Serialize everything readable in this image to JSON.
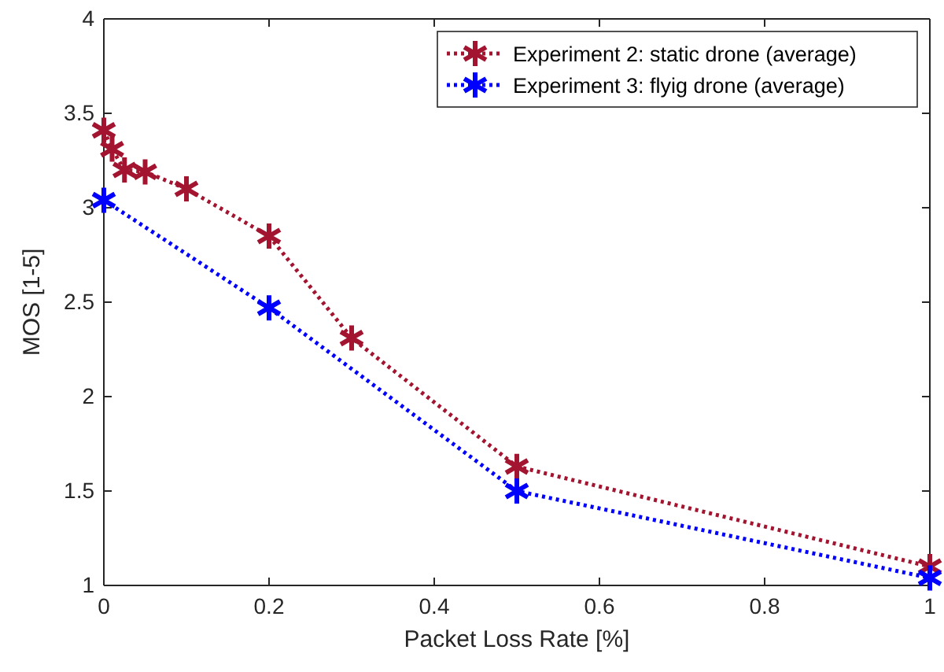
{
  "chart_data": {
    "type": "line",
    "xlabel": "Packet Loss Rate [%]",
    "ylabel": "MOS [1-5]",
    "xlim": [
      0,
      1
    ],
    "xticks": [
      0,
      0.2,
      0.4,
      0.6,
      0.8,
      1
    ],
    "ylim": [
      1,
      4
    ],
    "yticks": [
      1,
      1.5,
      2,
      2.5,
      3,
      3.5,
      4
    ],
    "grid": false,
    "legend": "top right",
    "marker": "cross",
    "line_style": "dotted",
    "series": [
      {
        "name": "Experiment 2: static drone (average)",
        "color": "#a2142f",
        "x": [
          0,
          0.01,
          0.025,
          0.05,
          0.1,
          0.2,
          0.3,
          0.5,
          1
        ],
        "values": [
          3.41,
          3.31,
          3.2,
          3.19,
          3.1,
          2.85,
          2.31,
          1.63,
          1.1
        ]
      },
      {
        "name": "Experiment 3: flyig drone (average)",
        "color": "#0000ff",
        "x": [
          0,
          0.2,
          0.5,
          1
        ],
        "values": [
          3.04,
          2.47,
          1.5,
          1.04
        ]
      }
    ]
  }
}
